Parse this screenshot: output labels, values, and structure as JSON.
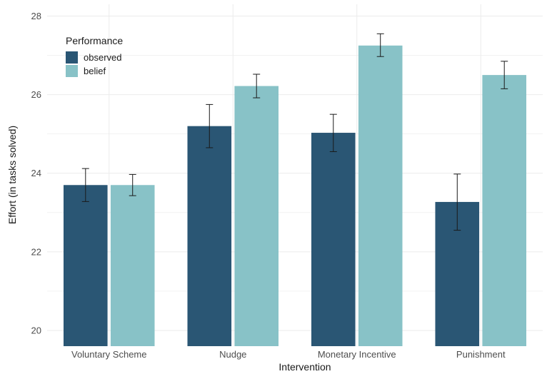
{
  "chart_data": {
    "type": "bar",
    "categories": [
      "Voluntary Scheme",
      "Nudge",
      "Monetary Incentive",
      "Punishment"
    ],
    "series": [
      {
        "name": "observed",
        "color": "#2a5674",
        "values": [
          23.7,
          25.2,
          25.03,
          23.27
        ],
        "error_low": [
          23.28,
          24.65,
          24.55,
          22.55
        ],
        "error_high": [
          24.12,
          25.75,
          25.5,
          23.98
        ]
      },
      {
        "name": "belief",
        "color": "#88c2c7",
        "values": [
          23.7,
          26.22,
          27.25,
          26.5
        ],
        "error_low": [
          23.43,
          25.92,
          26.97,
          26.15
        ],
        "error_high": [
          23.97,
          26.52,
          27.55,
          26.85
        ]
      }
    ],
    "xlabel": "Intervention",
    "ylabel": "Effort (in tasks solved)",
    "ylim": [
      19.6,
      28.3
    ],
    "yticks": [
      20,
      22,
      24,
      26,
      28
    ],
    "legend_title": "Performance",
    "legend_position": "top-left",
    "grid": true
  }
}
